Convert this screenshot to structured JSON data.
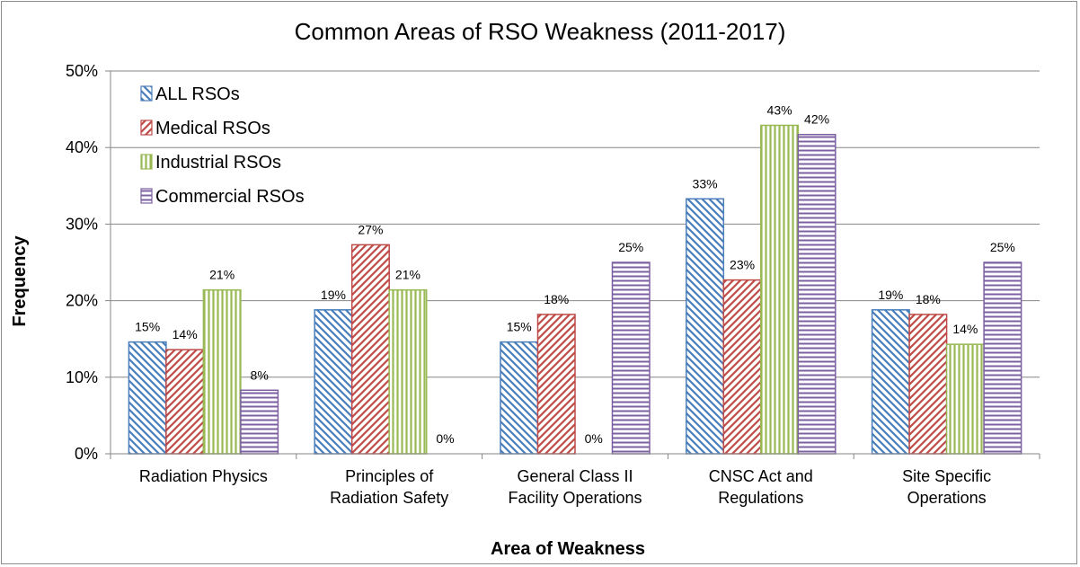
{
  "chart_data": {
    "type": "bar",
    "title": "Common Areas of RSO Weakness (2011-2017)",
    "xlabel": "Area of Weakness",
    "ylabel": "Frequency",
    "ylim": [
      0,
      50
    ],
    "y_ticks": [
      "0%",
      "10%",
      "20%",
      "30%",
      "40%",
      "50%"
    ],
    "grid": "horizontal",
    "legend_position": "top-left",
    "categories": [
      [
        "Radiation Physics"
      ],
      [
        "Principles of",
        "Radiation Safety"
      ],
      [
        "General Class II",
        "Facility Operations"
      ],
      [
        "CNSC Act and",
        "Regulations"
      ],
      [
        "Site Specific",
        "Operations"
      ]
    ],
    "series": [
      {
        "name": "ALL RSOs",
        "color": "#4a7ebb",
        "pattern": "diagonal-down",
        "values": [
          14.6,
          18.8,
          14.6,
          33.3,
          18.8
        ],
        "labels": [
          "15%",
          "19%",
          "15%",
          "33%",
          "19%"
        ]
      },
      {
        "name": "Medical RSOs",
        "color": "#be4b48",
        "pattern": "diagonal-up",
        "values": [
          13.6,
          27.3,
          18.2,
          22.7,
          18.2
        ],
        "labels": [
          "14%",
          "27%",
          "18%",
          "23%",
          "18%"
        ]
      },
      {
        "name": "Industrial RSOs",
        "color": "#98b954",
        "pattern": "vertical",
        "values": [
          21.4,
          21.4,
          0,
          42.9,
          14.3
        ],
        "labels": [
          "21%",
          "21%",
          "0%",
          "43%",
          "14%"
        ]
      },
      {
        "name": "Commercial RSOs",
        "color": "#7d60a0",
        "pattern": "horizontal",
        "values": [
          8.3,
          0,
          25.0,
          41.7,
          25.0
        ],
        "labels": [
          "8%",
          "0%",
          "25%",
          "42%",
          "25%"
        ]
      }
    ]
  }
}
